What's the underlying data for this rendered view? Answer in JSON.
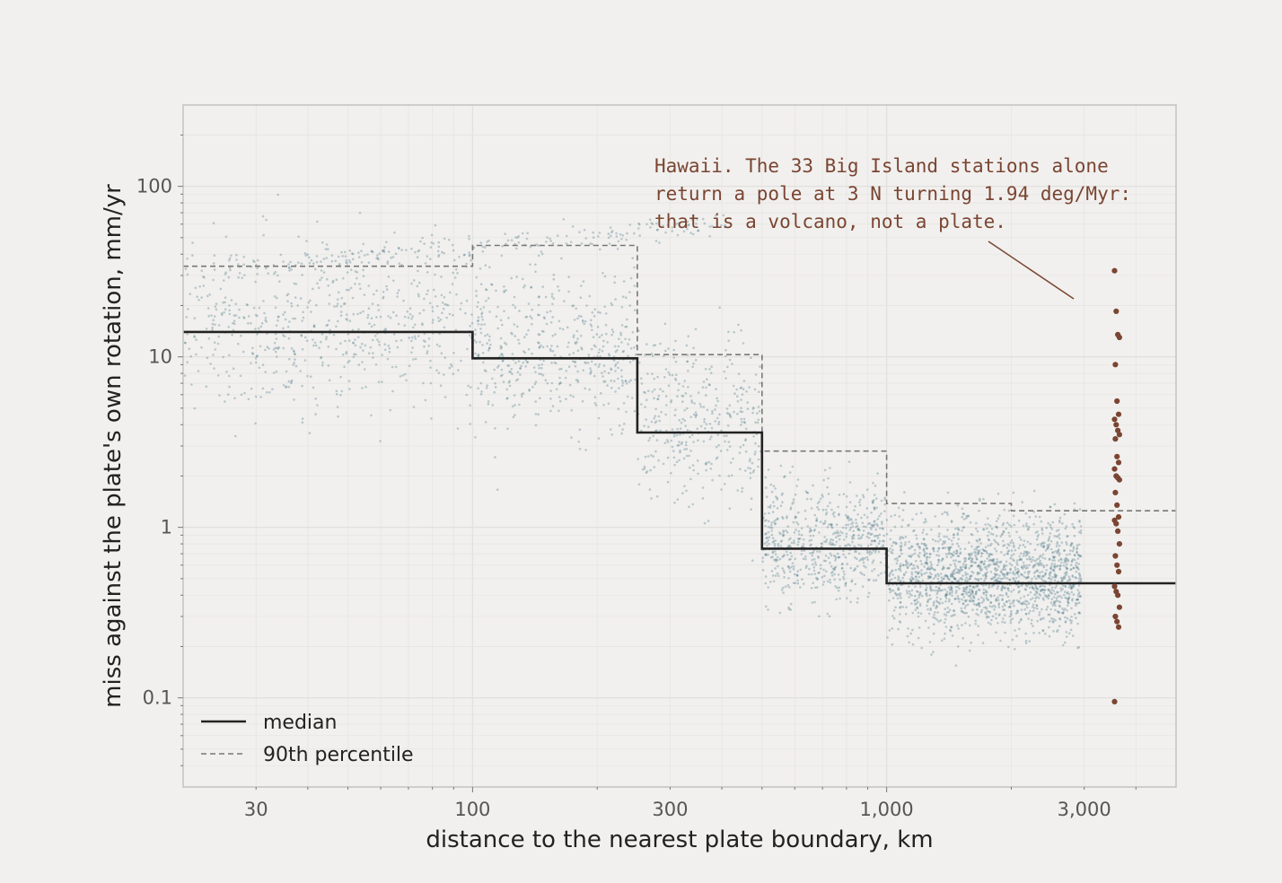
{
  "colors": {
    "background": "#f1f0ee",
    "points": "#4f7a8a",
    "hawaii": "#7a4532",
    "median": "#222222",
    "p90": "#777777"
  },
  "chart_data": {
    "type": "scatter",
    "title": "",
    "xlabel": "distance to the nearest plate boundary, km",
    "ylabel": "miss against the plate's own rotation, mm/yr",
    "xscale": "log",
    "yscale": "log",
    "xlim": [
      20,
      5000
    ],
    "ylim": [
      0.03,
      300
    ],
    "x_ticks": [
      30,
      100,
      300,
      1000,
      3000
    ],
    "x_tick_labels": [
      "30",
      "100",
      "300",
      "1,000",
      "3,000"
    ],
    "y_ticks": [
      0.1,
      1,
      10,
      100
    ],
    "y_tick_labels": [
      "0.1",
      "1",
      "10",
      "100"
    ],
    "grid": true,
    "legend_placement": "bottom-left",
    "series": [
      {
        "name": "median",
        "style": "solid step",
        "bin_edges": [
          20,
          100,
          250,
          500,
          1000,
          5000
        ],
        "values": [
          14,
          9.8,
          3.6,
          0.75,
          0.47
        ]
      },
      {
        "name": "90th percentile",
        "style": "dashed step",
        "bin_edges": [
          20,
          100,
          250,
          500,
          1000,
          2000,
          5000
        ],
        "values": [
          34,
          45,
          10.3,
          2.8,
          1.38,
          1.25
        ]
      }
    ],
    "hawaii_stations": {
      "x": 3600,
      "values": [
        32,
        18.5,
        13.5,
        13,
        9,
        5.5,
        4.6,
        4.3,
        4.0,
        3.7,
        3.5,
        3.3,
        2.6,
        2.4,
        2.2,
        2.0,
        1.95,
        1.9,
        1.6,
        1.35,
        1.15,
        1.1,
        1.05,
        0.95,
        0.8,
        0.68,
        0.6,
        0.55,
        0.45,
        0.42,
        0.4,
        0.34,
        0.3,
        0.28,
        0.26,
        0.095
      ]
    },
    "annotation": {
      "lines": [
        "Hawaii. The 33 Big Island stations alone",
        "return a pole at 3 N turning 1.94 deg/Myr:",
        "that is a volcano, not a plate."
      ]
    }
  }
}
